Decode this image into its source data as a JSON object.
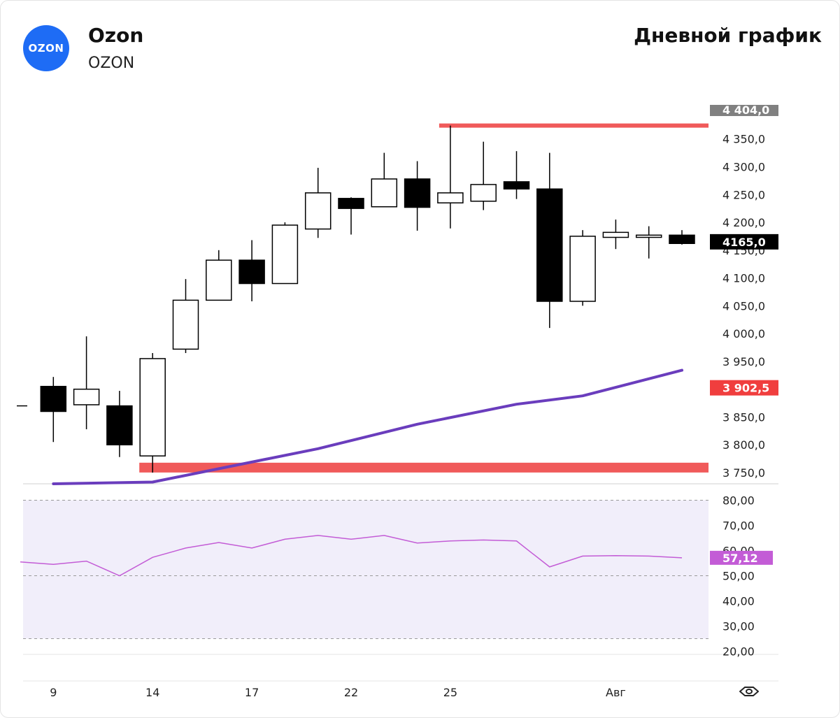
{
  "header": {
    "logo_text": "OZON",
    "company": "Ozon",
    "ticker": "OZON",
    "period": "Дневной график"
  },
  "colors": {
    "logo": "#1e6cf5",
    "level_line": "#f05a5a",
    "ma_line": "#6a3dbd",
    "rsi_line": "#c35cd6",
    "rsi_band": "#f1eefa",
    "last_price_tag": "#000000",
    "level_tag": "#f03e3e",
    "rsi_tag": "#c35cd6",
    "top_tag": "#808080"
  },
  "chart_data": [
    {
      "type": "candlestick",
      "ylim": [
        3740,
        4420
      ],
      "y_ticks": [
        "4 350,0",
        "4 300,0",
        "4 250,0",
        "4 200,0",
        "4 150,0",
        "4 100,0",
        "4 050,0",
        "4 000,0",
        "3 950,0",
        "3 850,0",
        "3 800,0",
        "3 750,0"
      ],
      "y_tick_values": [
        4350,
        4300,
        4250,
        4200,
        4150,
        4100,
        4050,
        4000,
        3950,
        3850,
        3800,
        3750
      ],
      "x_ticks": [
        "9",
        "14",
        "17",
        "22",
        "25",
        "Авг"
      ],
      "x_tick_index": [
        1,
        4,
        7,
        10,
        13,
        18
      ],
      "candles": [
        {
          "o": 3870,
          "h": null,
          "l": null,
          "c": 3870
        },
        {
          "o": 3905,
          "h": 3922,
          "l": 3805,
          "c": 3860
        },
        {
          "o": 3872,
          "h": 3995,
          "l": 3828,
          "c": 3900
        },
        {
          "o": 3870,
          "h": 3897,
          "l": 3778,
          "c": 3800
        },
        {
          "o": 3780,
          "h": 3965,
          "l": 3750,
          "c": 3955
        },
        {
          "o": 3972,
          "h": 4098,
          "l": 3965,
          "c": 4060
        },
        {
          "o": 4060,
          "h": 4150,
          "l": 4060,
          "c": 4132
        },
        {
          "o": 4132,
          "h": 4168,
          "l": 4058,
          "c": 4090
        },
        {
          "o": 4090,
          "h": 4200,
          "l": 4090,
          "c": 4195
        },
        {
          "o": 4188,
          "h": 4298,
          "l": 4172,
          "c": 4253
        },
        {
          "o": 4243,
          "h": 4245,
          "l": 4178,
          "c": 4225
        },
        {
          "o": 4228,
          "h": 4325,
          "l": 4228,
          "c": 4278
        },
        {
          "o": 4278,
          "h": 4310,
          "l": 4185,
          "c": 4227
        },
        {
          "o": 4235,
          "h": 4374,
          "l": 4189,
          "c": 4253
        },
        {
          "o": 4238,
          "h": 4345,
          "l": 4222,
          "c": 4268
        },
        {
          "o": 4273,
          "h": 4328,
          "l": 4242,
          "c": 4260
        },
        {
          "o": 4260,
          "h": 4325,
          "l": 4010,
          "c": 4058
        },
        {
          "o": 4058,
          "h": 4186,
          "l": 4050,
          "c": 4175
        },
        {
          "o": 4173,
          "h": 4205,
          "l": 4152,
          "c": 4182
        },
        {
          "o": 4173,
          "h": 4193,
          "l": 4135,
          "c": 4177
        },
        {
          "o": 4177,
          "h": 4186,
          "l": 4160,
          "c": 4162
        }
      ],
      "ma_line": {
        "x_index": [
          1,
          4,
          9,
          12,
          15,
          17,
          20
        ],
        "values": [
          3715,
          3733,
          3793,
          3837,
          3873,
          3888,
          3934
        ]
      },
      "levels": [
        {
          "value": 4374,
          "from_index": 13
        },
        {
          "value": 3759,
          "from_index": 4
        }
      ],
      "price_tags": [
        {
          "label": "4 404,0",
          "value": 4404
        },
        {
          "label": "4165,0",
          "value": 4165
        },
        {
          "label": "3 902,5",
          "value": 3902.5
        }
      ]
    },
    {
      "type": "line",
      "ylim": [
        19,
        82
      ],
      "y_ticks": [
        "80,00",
        "70,00",
        "60,00",
        "50,00",
        "40,00",
        "30,00",
        "20,00"
      ],
      "y_tick_values": [
        80,
        70,
        60,
        50,
        40,
        30,
        20
      ],
      "band": [
        25,
        80
      ],
      "ref_line": 50,
      "x_index": [
        0,
        1,
        2,
        3,
        4,
        5,
        6,
        7,
        8,
        9,
        10,
        11,
        12,
        13,
        14,
        15,
        16,
        17,
        18,
        19,
        20
      ],
      "values": [
        55.5,
        54.5,
        55.8,
        50.0,
        57.3,
        61.0,
        63.2,
        61.0,
        64.5,
        66.0,
        64.5,
        66.0,
        63.0,
        63.8,
        64.2,
        63.8,
        53.5,
        57.8,
        58.0,
        57.8,
        57.12
      ],
      "last_label": "57,12"
    }
  ]
}
